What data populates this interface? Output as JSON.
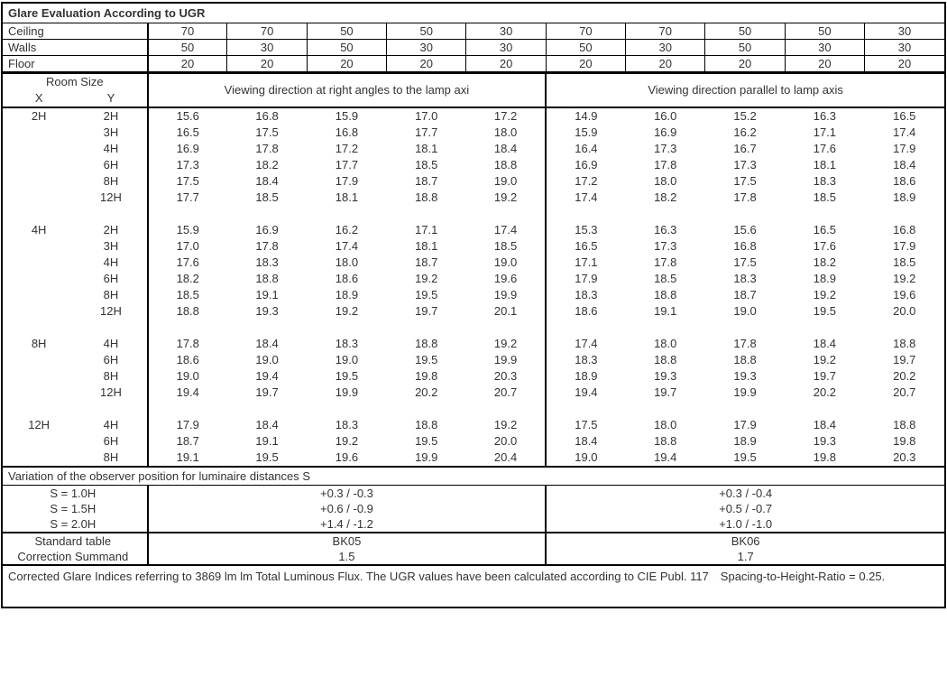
{
  "title": "Glare Evaluation According to UGR",
  "header_rows": [
    {
      "label": "Ceiling",
      "vals": [
        "70",
        "70",
        "50",
        "50",
        "30",
        "70",
        "70",
        "50",
        "50",
        "30"
      ]
    },
    {
      "label": "Walls",
      "vals": [
        "50",
        "30",
        "50",
        "30",
        "30",
        "50",
        "30",
        "50",
        "30",
        "30"
      ]
    },
    {
      "label": "Floor",
      "vals": [
        "20",
        "20",
        "20",
        "20",
        "20",
        "20",
        "20",
        "20",
        "20",
        "20"
      ]
    }
  ],
  "room_size_label": "Room Size",
  "room_x": "X",
  "room_y": "Y",
  "dir_left": "Viewing direction at right angles to the lamp axi",
  "dir_right": "Viewing direction parallel to lamp axis",
  "groups": [
    {
      "x": "2H",
      "rows": [
        {
          "y": "2H",
          "v": [
            "15.6",
            "16.8",
            "15.9",
            "17.0",
            "17.2",
            "14.9",
            "16.0",
            "15.2",
            "16.3",
            "16.5"
          ]
        },
        {
          "y": "3H",
          "v": [
            "16.5",
            "17.5",
            "16.8",
            "17.7",
            "18.0",
            "15.9",
            "16.9",
            "16.2",
            "17.1",
            "17.4"
          ]
        },
        {
          "y": "4H",
          "v": [
            "16.9",
            "17.8",
            "17.2",
            "18.1",
            "18.4",
            "16.4",
            "17.3",
            "16.7",
            "17.6",
            "17.9"
          ]
        },
        {
          "y": "6H",
          "v": [
            "17.3",
            "18.2",
            "17.7",
            "18.5",
            "18.8",
            "16.9",
            "17.8",
            "17.3",
            "18.1",
            "18.4"
          ]
        },
        {
          "y": "8H",
          "v": [
            "17.5",
            "18.4",
            "17.9",
            "18.7",
            "19.0",
            "17.2",
            "18.0",
            "17.5",
            "18.3",
            "18.6"
          ]
        },
        {
          "y": "12H",
          "v": [
            "17.7",
            "18.5",
            "18.1",
            "18.8",
            "19.2",
            "17.4",
            "18.2",
            "17.8",
            "18.5",
            "18.9"
          ]
        }
      ]
    },
    {
      "x": "4H",
      "rows": [
        {
          "y": "2H",
          "v": [
            "15.9",
            "16.9",
            "16.2",
            "17.1",
            "17.4",
            "15.3",
            "16.3",
            "15.6",
            "16.5",
            "16.8"
          ]
        },
        {
          "y": "3H",
          "v": [
            "17.0",
            "17.8",
            "17.4",
            "18.1",
            "18.5",
            "16.5",
            "17.3",
            "16.8",
            "17.6",
            "17.9"
          ]
        },
        {
          "y": "4H",
          "v": [
            "17.6",
            "18.3",
            "18.0",
            "18.7",
            "19.0",
            "17.1",
            "17.8",
            "17.5",
            "18.2",
            "18.5"
          ]
        },
        {
          "y": "6H",
          "v": [
            "18.2",
            "18.8",
            "18.6",
            "19.2",
            "19.6",
            "17.9",
            "18.5",
            "18.3",
            "18.9",
            "19.2"
          ]
        },
        {
          "y": "8H",
          "v": [
            "18.5",
            "19.1",
            "18.9",
            "19.5",
            "19.9",
            "18.3",
            "18.8",
            "18.7",
            "19.2",
            "19.6"
          ]
        },
        {
          "y": "12H",
          "v": [
            "18.8",
            "19.3",
            "19.2",
            "19.7",
            "20.1",
            "18.6",
            "19.1",
            "19.0",
            "19.5",
            "20.0"
          ]
        }
      ]
    },
    {
      "x": "8H",
      "rows": [
        {
          "y": "4H",
          "v": [
            "17.8",
            "18.4",
            "18.3",
            "18.8",
            "19.2",
            "17.4",
            "18.0",
            "17.8",
            "18.4",
            "18.8"
          ]
        },
        {
          "y": "6H",
          "v": [
            "18.6",
            "19.0",
            "19.0",
            "19.5",
            "19.9",
            "18.3",
            "18.8",
            "18.8",
            "19.2",
            "19.7"
          ]
        },
        {
          "y": "8H",
          "v": [
            "19.0",
            "19.4",
            "19.5",
            "19.8",
            "20.3",
            "18.9",
            "19.3",
            "19.3",
            "19.7",
            "20.2"
          ]
        },
        {
          "y": "12H",
          "v": [
            "19.4",
            "19.7",
            "19.9",
            "20.2",
            "20.7",
            "19.4",
            "19.7",
            "19.9",
            "20.2",
            "20.7"
          ]
        }
      ]
    },
    {
      "x": "12H",
      "rows": [
        {
          "y": "4H",
          "v": [
            "17.9",
            "18.4",
            "18.3",
            "18.8",
            "19.2",
            "17.5",
            "18.0",
            "17.9",
            "18.4",
            "18.8"
          ]
        },
        {
          "y": "6H",
          "v": [
            "18.7",
            "19.1",
            "19.2",
            "19.5",
            "20.0",
            "18.4",
            "18.8",
            "18.9",
            "19.3",
            "19.8"
          ]
        },
        {
          "y": "8H",
          "v": [
            "19.1",
            "19.5",
            "19.6",
            "19.9",
            "20.4",
            "19.0",
            "19.4",
            "19.5",
            "19.8",
            "20.3"
          ]
        }
      ]
    }
  ],
  "variation_title": "Variation of the observer position for luminaire distances S",
  "variation_rows": [
    {
      "label": "S = 1.0H",
      "left": "+0.3 / -0.3",
      "right": "+0.3 / -0.4"
    },
    {
      "label": "S = 1.5H",
      "left": "+0.6 / -0.9",
      "right": "+0.5 / -0.7"
    },
    {
      "label": "S = 2.0H",
      "left": "+1.4 / -1.2",
      "right": "+1.0 / -1.0"
    }
  ],
  "std_table_label": "Standard table",
  "std_table_left": "BK05",
  "std_table_right": "BK06",
  "corr_label": "Correction Summand",
  "corr_left": "1.5",
  "corr_right": "1.7",
  "footnote": "Corrected Glare Indices referring to 3869 lm lm Total Luminous Flux. The UGR values have been calculated according to CIE Publ. 117 Spacing-to-Height-Ratio = 0.25."
}
